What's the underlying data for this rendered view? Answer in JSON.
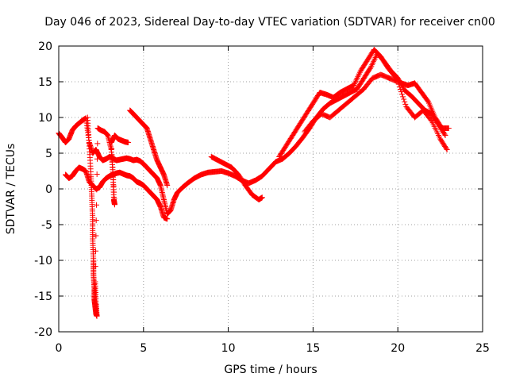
{
  "chart_data": {
    "type": "scatter",
    "title": "Day 046 of 2023, Sidereal Day-to-day VTEC variation (SDTVAR) for receiver cn00",
    "xlabel": "GPS time / hours",
    "ylabel": "SDTVAR / TECUs",
    "xlim": [
      0,
      25
    ],
    "ylim": [
      -20,
      20
    ],
    "xticks": [
      0,
      5,
      10,
      15,
      20,
      25
    ],
    "yticks": [
      -20,
      -15,
      -10,
      -5,
      0,
      5,
      10,
      15,
      20
    ],
    "grid": true,
    "marker": "+",
    "color": "#ff0000",
    "series": [
      {
        "name": "main",
        "points": [
          [
            0.0,
            7.8
          ],
          [
            0.2,
            7.2
          ],
          [
            0.4,
            6.5
          ],
          [
            0.6,
            7.0
          ],
          [
            0.8,
            8.2
          ],
          [
            1.0,
            8.8
          ],
          [
            1.2,
            9.2
          ],
          [
            1.4,
            9.6
          ],
          [
            1.6,
            9.9
          ],
          [
            1.8,
            6.5
          ],
          [
            2.0,
            5.0
          ],
          [
            2.2,
            5.5
          ],
          [
            2.4,
            4.5
          ],
          [
            2.6,
            4.0
          ],
          [
            2.8,
            4.2
          ],
          [
            3.0,
            4.5
          ],
          [
            3.2,
            4.3
          ],
          [
            3.4,
            4.0
          ],
          [
            3.6,
            4.1
          ],
          [
            3.8,
            4.2
          ],
          [
            4.0,
            4.3
          ],
          [
            4.2,
            4.2
          ],
          [
            4.4,
            4.0
          ],
          [
            4.6,
            4.1
          ],
          [
            4.8,
            3.9
          ],
          [
            5.0,
            3.5
          ],
          [
            5.2,
            3.0
          ],
          [
            5.4,
            2.5
          ],
          [
            5.6,
            2.0
          ],
          [
            5.8,
            1.5
          ],
          [
            6.0,
            0.5
          ],
          [
            6.2,
            -1.5
          ],
          [
            6.4,
            -3.5
          ],
          [
            6.6,
            -3.0
          ],
          [
            6.8,
            -1.5
          ],
          [
            7.0,
            -0.5
          ],
          [
            7.3,
            0.2
          ],
          [
            7.6,
            0.8
          ],
          [
            8.0,
            1.5
          ],
          [
            8.4,
            2.0
          ],
          [
            8.8,
            2.3
          ],
          [
            9.2,
            2.4
          ],
          [
            9.6,
            2.5
          ],
          [
            10.0,
            2.2
          ],
          [
            10.4,
            1.8
          ],
          [
            10.8,
            1.2
          ],
          [
            11.2,
            0.8
          ],
          [
            11.6,
            1.2
          ],
          [
            12.0,
            1.8
          ],
          [
            12.4,
            2.8
          ],
          [
            12.8,
            3.8
          ],
          [
            13.2,
            4.2
          ],
          [
            13.6,
            5.0
          ],
          [
            14.0,
            6.0
          ],
          [
            14.4,
            7.2
          ],
          [
            14.8,
            8.5
          ],
          [
            15.2,
            10.0
          ],
          [
            15.6,
            11.2
          ],
          [
            16.0,
            12.0
          ],
          [
            16.4,
            12.5
          ],
          [
            16.8,
            13.0
          ],
          [
            17.2,
            13.5
          ],
          [
            17.6,
            14.0
          ],
          [
            18.0,
            15.5
          ],
          [
            18.4,
            17.0
          ],
          [
            18.8,
            19.0
          ],
          [
            19.2,
            17.8
          ],
          [
            19.6,
            16.5
          ],
          [
            20.0,
            15.5
          ],
          [
            20.4,
            13.8
          ],
          [
            20.8,
            13.0
          ],
          [
            21.2,
            12.0
          ],
          [
            21.6,
            11.0
          ],
          [
            22.0,
            10.5
          ],
          [
            22.4,
            9.0
          ],
          [
            22.8,
            7.5
          ]
        ]
      },
      {
        "name": "upper-trace",
        "points": [
          [
            4.2,
            11.0
          ],
          [
            4.4,
            10.5
          ],
          [
            4.6,
            10.0
          ],
          [
            4.8,
            9.5
          ],
          [
            5.0,
            9.0
          ],
          [
            5.2,
            8.5
          ],
          [
            5.4,
            7.0
          ],
          [
            5.6,
            5.5
          ],
          [
            5.8,
            4.0
          ],
          [
            6.0,
            3.0
          ],
          [
            6.2,
            2.0
          ],
          [
            6.4,
            0.5
          ],
          [
            13.0,
            4.5
          ],
          [
            13.4,
            6.0
          ],
          [
            13.8,
            7.5
          ],
          [
            14.2,
            9.0
          ],
          [
            14.6,
            10.5
          ],
          [
            15.0,
            12.0
          ],
          [
            15.4,
            13.5
          ],
          [
            15.8,
            13.2
          ],
          [
            16.2,
            12.8
          ],
          [
            16.6,
            13.5
          ],
          [
            17.0,
            14.0
          ],
          [
            17.4,
            14.5
          ],
          [
            17.8,
            16.5
          ],
          [
            18.2,
            18.0
          ],
          [
            18.6,
            19.5
          ],
          [
            19.0,
            18.5
          ],
          [
            19.4,
            17.0
          ],
          [
            19.8,
            15.8
          ],
          [
            20.2,
            14.8
          ],
          [
            20.6,
            14.5
          ],
          [
            21.0,
            14.8
          ],
          [
            21.4,
            13.5
          ],
          [
            21.8,
            12.2
          ],
          [
            22.2,
            10.0
          ],
          [
            22.6,
            8.5
          ],
          [
            23.0,
            8.5
          ]
        ]
      },
      {
        "name": "lower-trace",
        "points": [
          [
            0.4,
            2.0
          ],
          [
            0.6,
            1.5
          ],
          [
            0.8,
            1.8
          ],
          [
            1.0,
            2.5
          ],
          [
            1.2,
            3.0
          ],
          [
            1.4,
            2.8
          ],
          [
            1.6,
            2.5
          ],
          [
            1.8,
            1.0
          ],
          [
            2.0,
            0.5
          ],
          [
            2.2,
            0.0
          ],
          [
            2.4,
            0.2
          ],
          [
            2.6,
            1.0
          ],
          [
            2.8,
            1.5
          ],
          [
            3.0,
            1.8
          ],
          [
            3.2,
            2.0
          ],
          [
            3.4,
            2.2
          ],
          [
            3.6,
            2.3
          ],
          [
            3.8,
            2.1
          ],
          [
            4.0,
            1.9
          ],
          [
            4.2,
            1.8
          ],
          [
            4.4,
            1.5
          ],
          [
            4.6,
            1.0
          ],
          [
            4.8,
            0.8
          ],
          [
            5.0,
            0.5
          ],
          [
            5.2,
            0.0
          ],
          [
            5.4,
            -0.5
          ],
          [
            5.6,
            -1.0
          ],
          [
            5.8,
            -1.5
          ],
          [
            6.0,
            -2.5
          ],
          [
            6.2,
            -4.0
          ],
          [
            6.4,
            -4.2
          ],
          [
            9.0,
            4.5
          ],
          [
            9.4,
            4.0
          ],
          [
            9.8,
            3.5
          ],
          [
            10.2,
            3.0
          ],
          [
            10.6,
            2.0
          ],
          [
            11.0,
            0.5
          ],
          [
            11.4,
            -0.8
          ],
          [
            11.8,
            -1.5
          ],
          [
            12.0,
            -1.2
          ],
          [
            14.5,
            8.0
          ],
          [
            15.0,
            9.5
          ],
          [
            15.5,
            10.5
          ],
          [
            16.0,
            10.0
          ],
          [
            16.5,
            11.0
          ],
          [
            17.0,
            12.0
          ],
          [
            17.5,
            13.0
          ],
          [
            18.0,
            14.0
          ],
          [
            18.5,
            15.5
          ],
          [
            19.0,
            16.0
          ],
          [
            19.5,
            15.5
          ],
          [
            20.0,
            15.0
          ],
          [
            20.5,
            11.5
          ],
          [
            21.0,
            10.0
          ],
          [
            21.5,
            11.0
          ],
          [
            22.0,
            9.5
          ],
          [
            22.5,
            7.0
          ],
          [
            22.9,
            5.5
          ]
        ]
      },
      {
        "name": "spike",
        "points": [
          [
            1.7,
            10.0
          ],
          [
            1.8,
            6.0
          ],
          [
            1.9,
            2.0
          ],
          [
            1.95,
            -1.0
          ],
          [
            2.0,
            -4.0
          ],
          [
            2.0,
            -7.0
          ],
          [
            2.05,
            -10.0
          ],
          [
            2.05,
            -12.0
          ],
          [
            2.1,
            -14.0
          ],
          [
            2.1,
            -15.5
          ],
          [
            2.15,
            -16.5
          ],
          [
            2.2,
            -17.5
          ],
          [
            2.25,
            -17.8
          ],
          [
            2.2,
            -16.0
          ],
          [
            2.15,
            -13.0
          ],
          [
            2.3,
            8.5
          ],
          [
            2.5,
            8.2
          ],
          [
            2.7,
            8.0
          ],
          [
            2.9,
            7.5
          ],
          [
            3.1,
            5.5
          ],
          [
            3.2,
            2.0
          ],
          [
            3.25,
            -1.5
          ],
          [
            3.3,
            -2.2
          ],
          [
            3.1,
            6.5
          ],
          [
            3.3,
            7.5
          ],
          [
            3.5,
            7.0
          ],
          [
            3.7,
            6.8
          ],
          [
            3.9,
            6.6
          ],
          [
            4.1,
            6.5
          ]
        ]
      }
    ]
  }
}
